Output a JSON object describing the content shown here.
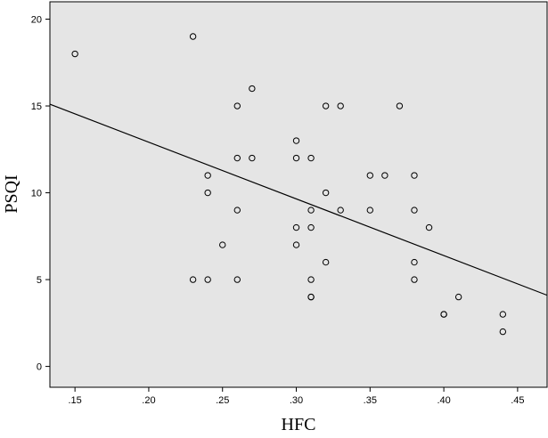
{
  "chart_data": {
    "type": "scatter",
    "xlabel": "HFC",
    "ylabel": "PSQI",
    "xlim": [
      0.133,
      0.47
    ],
    "ylim": [
      -1.2,
      21
    ],
    "x_ticks": [
      0.15,
      0.2,
      0.25,
      0.3,
      0.35,
      0.4,
      0.45
    ],
    "x_tick_labels": [
      ".15",
      ".20",
      ".25",
      ".30",
      ".35",
      ".40",
      ".45"
    ],
    "y_ticks": [
      0,
      5,
      10,
      15,
      20
    ],
    "y_tick_labels": [
      "0",
      "5",
      "10",
      "15",
      "20"
    ],
    "plot_background": "#e5e5e5",
    "marker": "open-circle",
    "fit_line": {
      "type": "linear",
      "start": [
        0.133,
        15.1
      ],
      "end": [
        0.47,
        4.1
      ]
    },
    "series": [
      {
        "points": [
          [
            0.15,
            18
          ],
          [
            0.23,
            19
          ],
          [
            0.23,
            5
          ],
          [
            0.24,
            11
          ],
          [
            0.24,
            10
          ],
          [
            0.24,
            5
          ],
          [
            0.25,
            7
          ],
          [
            0.26,
            15
          ],
          [
            0.26,
            12
          ],
          [
            0.26,
            9
          ],
          [
            0.26,
            5
          ],
          [
            0.27,
            16
          ],
          [
            0.27,
            12
          ],
          [
            0.3,
            13
          ],
          [
            0.3,
            12
          ],
          [
            0.3,
            8
          ],
          [
            0.3,
            7
          ],
          [
            0.31,
            12
          ],
          [
            0.31,
            9
          ],
          [
            0.31,
            8
          ],
          [
            0.31,
            5
          ],
          [
            0.31,
            4
          ],
          [
            0.31,
            4
          ],
          [
            0.32,
            15
          ],
          [
            0.32,
            10
          ],
          [
            0.32,
            6
          ],
          [
            0.33,
            15
          ],
          [
            0.33,
            9
          ],
          [
            0.35,
            11
          ],
          [
            0.35,
            9
          ],
          [
            0.36,
            11
          ],
          [
            0.37,
            15
          ],
          [
            0.38,
            11
          ],
          [
            0.38,
            9
          ],
          [
            0.38,
            6
          ],
          [
            0.38,
            5
          ],
          [
            0.39,
            8
          ],
          [
            0.4,
            3
          ],
          [
            0.4,
            3
          ],
          [
            0.41,
            4
          ],
          [
            0.44,
            3
          ],
          [
            0.44,
            2
          ]
        ]
      }
    ]
  }
}
